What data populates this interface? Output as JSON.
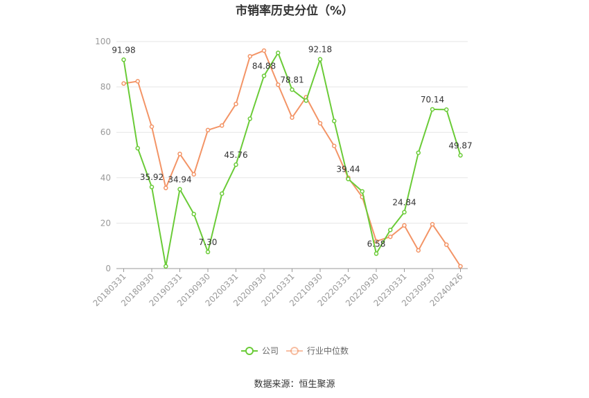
{
  "title": "市销率历史分位（%）",
  "source": "数据来源：恒生聚源",
  "colors": {
    "company": "#6acb37",
    "industry": "#f39466",
    "grid": "#e6e6e6",
    "axis": "#999999"
  },
  "chart_data": {
    "type": "line",
    "title": "市销率历史分位（%）",
    "ylim": [
      0,
      100
    ],
    "yticks": [
      0,
      20,
      40,
      60,
      80,
      100
    ],
    "x_tick_labels": [
      "20180331",
      "20180930",
      "20190331",
      "20190930",
      "20200331",
      "20200930",
      "20210331",
      "20210930",
      "20220331",
      "20220930",
      "20230331",
      "20230930",
      "20240426"
    ],
    "grid": true,
    "legend_position": "bottom",
    "series": [
      {
        "name": "公司",
        "values": [
          91.98,
          53,
          35.92,
          1,
          34.94,
          24,
          7.3,
          33,
          45.76,
          66,
          84.88,
          95,
          78.81,
          74,
          92.18,
          65,
          39.44,
          34,
          6.58,
          17,
          24.84,
          51,
          70.14,
          70,
          49.87
        ],
        "labels": {
          "0": "91.98",
          "2": "35.92",
          "4": "34.94",
          "6": "7.30",
          "8": "45.76",
          "10": "84.88",
          "12": "78.81",
          "14": "92.18",
          "16": "39.44",
          "18": "6.58",
          "20": "24.84",
          "22": "70.14",
          "24": "49.87"
        }
      },
      {
        "name": "行业中位数",
        "values": [
          81.5,
          82.5,
          62.5,
          35.5,
          50.5,
          41.5,
          61,
          63,
          72.5,
          93.5,
          96,
          81,
          66.5,
          75.5,
          64,
          54,
          40,
          31.5,
          12,
          14,
          19,
          8,
          19.5,
          10.5,
          1
        ]
      }
    ]
  }
}
